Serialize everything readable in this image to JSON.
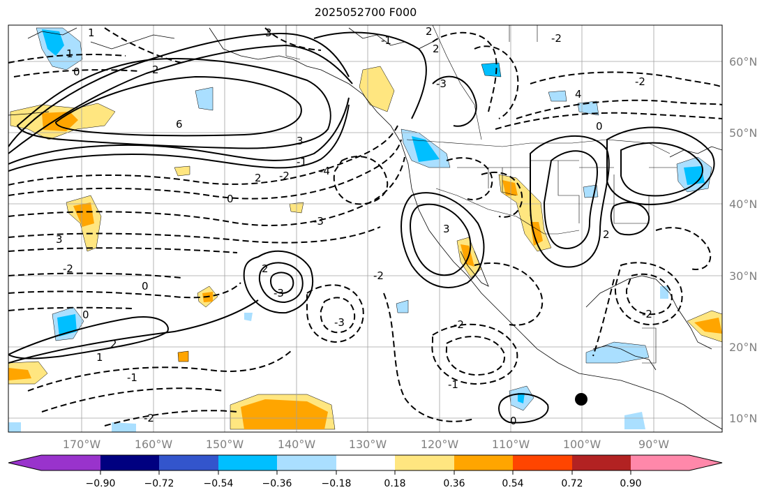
{
  "title": "2025052700 F000",
  "axes": {
    "lat_labels": [
      "60°N",
      "50°N",
      "40°N",
      "30°N",
      "20°N",
      "10°N"
    ],
    "lon_labels": [
      "170°W",
      "160°W",
      "150°W",
      "140°W",
      "130°W",
      "120°W",
      "110°W",
      "100°W",
      "90°W"
    ]
  },
  "colorbar": {
    "labels": [
      "−0.90",
      "−0.72",
      "−0.54",
      "−0.36",
      "−0.18",
      "0.18",
      "0.36",
      "0.54",
      "0.72",
      "0.90"
    ],
    "colors": [
      "#9933cc",
      "#000080",
      "#3355cc",
      "#00bfff",
      "#aadfff",
      "#ffffff",
      "#ffe680",
      "#ffa500",
      "#ff4500",
      "#b22222",
      "#ff88aa"
    ]
  },
  "contour_labels": [
    "1",
    "3",
    "2",
    "1",
    "0",
    "2",
    "6",
    "3",
    "0",
    "2",
    "-1",
    "-2",
    "3",
    "0",
    "-4",
    "-3",
    "-2",
    "2",
    "-3",
    "0",
    "-3",
    "2",
    "-2",
    "3",
    "1",
    "-1",
    "-2",
    "-2",
    "-1",
    "-3",
    "-1",
    "2",
    "-2",
    "-2",
    "4",
    "2",
    "0",
    "0",
    "-2"
  ]
}
